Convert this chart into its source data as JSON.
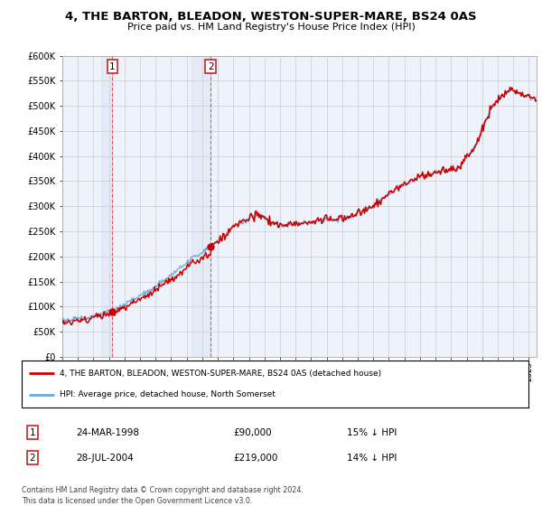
{
  "title": "4, THE BARTON, BLEADON, WESTON-SUPER-MARE, BS24 0AS",
  "subtitle": "Price paid vs. HM Land Registry's House Price Index (HPI)",
  "ylabel_ticks": [
    "£0",
    "£50K",
    "£100K",
    "£150K",
    "£200K",
    "£250K",
    "£300K",
    "£350K",
    "£400K",
    "£450K",
    "£500K",
    "£550K",
    "£600K"
  ],
  "ytick_values": [
    0,
    50000,
    100000,
    150000,
    200000,
    250000,
    300000,
    350000,
    400000,
    450000,
    500000,
    550000,
    600000
  ],
  "hpi_color": "#6aacde",
  "price_color": "#cc0000",
  "background_plot": "#eef2fa",
  "grid_color": "#cccccc",
  "sale1_year": 1998.22,
  "sale1_price": 90000,
  "sale2_year": 2004.55,
  "sale2_price": 219000,
  "legend_line1": "4, THE BARTON, BLEADON, WESTON-SUPER-MARE, BS24 0AS (detached house)",
  "legend_line2": "HPI: Average price, detached house, North Somerset",
  "table_row1": [
    "1",
    "24-MAR-1998",
    "£90,000",
    "15% ↓ HPI"
  ],
  "table_row2": [
    "2",
    "28-JUL-2004",
    "£219,000",
    "14% ↓ HPI"
  ],
  "footer": "Contains HM Land Registry data © Crown copyright and database right 2024.\nThis data is licensed under the Open Government Licence v3.0.",
  "xstart": 1995.0,
  "xend": 2025.5,
  "hpi_seed": 17,
  "hpi_noise_scale": 4000,
  "red_noise_scale": 3000
}
